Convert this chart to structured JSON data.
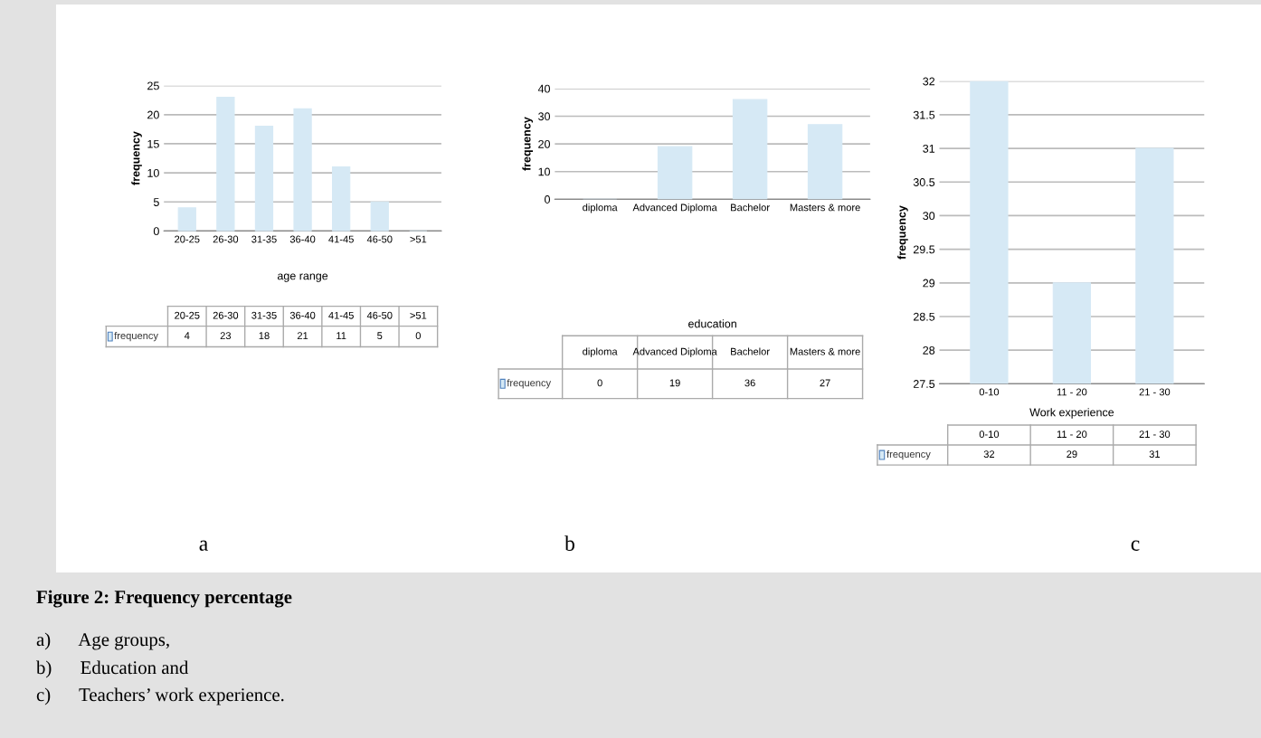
{
  "chart_data": [
    {
      "type": "bar",
      "xlabel": "age range",
      "ylabel": "frequency",
      "categories": [
        "20-25",
        "26-30",
        "31-35",
        "36-40",
        "41-45",
        "46-50",
        ">51"
      ],
      "series": [
        {
          "name": "frequency",
          "color": "#d6e9f5",
          "values": [
            4,
            23,
            18,
            21,
            11,
            5,
            0
          ]
        }
      ],
      "ylim": [
        0,
        25
      ],
      "yticks": [
        0,
        5,
        10,
        15,
        20,
        25
      ],
      "grid": "y",
      "data_labels": true,
      "annotations": [
        "a",
        "Figure 2: Frequency percentage",
        "a)      Age groups,",
        "b)      Education and",
        "c)      Teachers’ work experience."
      ]
    },
    {
      "type": "bar",
      "xlabel": "education",
      "ylabel": "frequency",
      "categories": [
        "diploma",
        "Advanced Diploma",
        "Bachelor",
        "Masters & more"
      ],
      "series": [
        {
          "name": "frequency",
          "color": "#d6e9f5",
          "values": [
            0,
            19,
            36,
            27
          ]
        }
      ],
      "ylim": [
        0,
        40
      ],
      "yticks": [
        0,
        10,
        20,
        30,
        40
      ],
      "grid": "y",
      "data_labels": true,
      "annotations": [
        "b"
      ]
    },
    {
      "type": "bar",
      "xlabel": "Work experience",
      "ylabel": "frequency",
      "categories": [
        "0-10",
        "11 - 20",
        "21 - 30"
      ],
      "series": [
        {
          "name": "frequency",
          "color": "#d6e9f5",
          "values": [
            32,
            29,
            31
          ]
        }
      ],
      "ylim": [
        27.5,
        32
      ],
      "yticks": [
        27.5,
        28,
        28.5,
        29,
        29.5,
        30,
        30.5,
        31,
        31.5,
        32
      ],
      "grid": "y",
      "data_labels": true,
      "annotations": [
        "c"
      ]
    }
  ]
}
